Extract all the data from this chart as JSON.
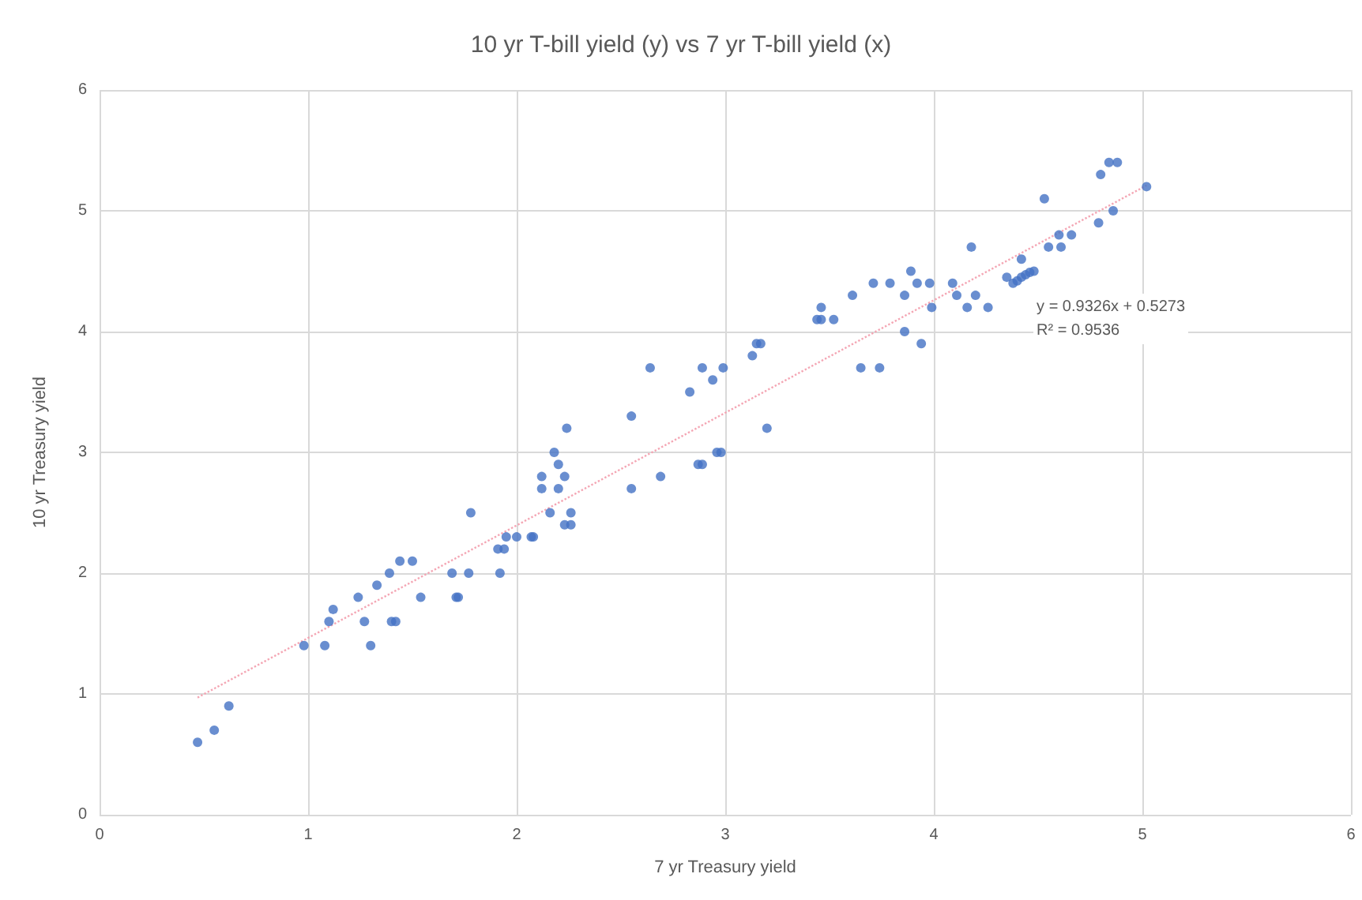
{
  "chart_data": {
    "type": "scatter",
    "title": "10 yr T-bill yield (y) vs 7 yr T-bill yield (x)",
    "xlabel": "7 yr Treasury yield",
    "ylabel": "10 yr Treasury yield",
    "xlim": [
      0,
      6
    ],
    "xticks": [
      0,
      1,
      2,
      3,
      4,
      5,
      6
    ],
    "ylim": [
      0,
      6
    ],
    "yticks": [
      0,
      1,
      2,
      3,
      4,
      5,
      6
    ],
    "grid": true,
    "marker": "circle",
    "annotations": [
      "y = 0.9326x + 0.5273\nR² = 0.9536"
    ],
    "series": [
      {
        "color": "#4472c4",
        "x": [
          0.47,
          0.55,
          0.62,
          0.98,
          1.08,
          1.1,
          1.12,
          1.24,
          1.27,
          1.3,
          1.33,
          1.39,
          1.4,
          1.42,
          1.44,
          1.5,
          1.54,
          1.69,
          1.71,
          1.72,
          1.77,
          1.78,
          1.92,
          1.91,
          1.94,
          1.95,
          2.0,
          2.07,
          2.08,
          2.16,
          2.23,
          2.26,
          2.26,
          2.12,
          2.12,
          2.2,
          2.2,
          2.18,
          2.23,
          2.24,
          2.55,
          2.55,
          2.69,
          2.64,
          2.83,
          2.89,
          2.94,
          2.99,
          2.87,
          2.89,
          2.96,
          2.98,
          3.13,
          3.15,
          3.17,
          3.2,
          3.44,
          3.46,
          3.46,
          3.52,
          3.61,
          3.65,
          3.74,
          3.71,
          3.79,
          3.86,
          3.86,
          3.89,
          3.92,
          3.94,
          3.98,
          3.99,
          4.09,
          4.11,
          4.16,
          4.18,
          4.2,
          4.26,
          4.35,
          4.38,
          4.4,
          4.42,
          4.44,
          4.46,
          4.48,
          4.42,
          4.53,
          4.55,
          4.6,
          4.61,
          4.66,
          4.79,
          4.8,
          4.84,
          4.88,
          4.86,
          5.02
        ],
        "values": [
          0.6,
          0.7,
          0.9,
          1.4,
          1.4,
          1.6,
          1.7,
          1.8,
          1.6,
          1.4,
          1.9,
          2.0,
          1.6,
          1.6,
          2.1,
          2.1,
          1.8,
          2.0,
          1.8,
          1.8,
          2.0,
          2.5,
          2.0,
          2.2,
          2.2,
          2.3,
          2.3,
          2.3,
          2.3,
          2.5,
          2.4,
          2.4,
          2.5,
          2.7,
          2.8,
          2.7,
          2.9,
          3.0,
          2.8,
          3.2,
          3.3,
          2.7,
          2.8,
          3.7,
          3.5,
          3.7,
          3.6,
          3.7,
          2.9,
          2.9,
          3.0,
          3.0,
          3.8,
          3.9,
          3.9,
          3.2,
          4.1,
          4.1,
          4.2,
          4.1,
          4.3,
          3.7,
          3.7,
          4.4,
          4.4,
          4.3,
          4.0,
          4.5,
          4.4,
          3.9,
          4.4,
          4.2,
          4.4,
          4.3,
          4.2,
          4.7,
          4.3,
          4.2,
          4.45,
          4.4,
          4.42,
          4.45,
          4.47,
          4.49,
          4.5,
          4.6,
          5.1,
          4.7,
          4.8,
          4.7,
          4.8,
          4.9,
          5.3,
          5.4,
          5.4,
          5.0,
          5.2
        ]
      },
      {
        "type": "line",
        "color": "#f4a6b4",
        "line_style": "dotted",
        "marker": "none",
        "x": [
          0.47,
          5.02
        ],
        "values": [
          0.97,
          5.21
        ]
      }
    ]
  }
}
